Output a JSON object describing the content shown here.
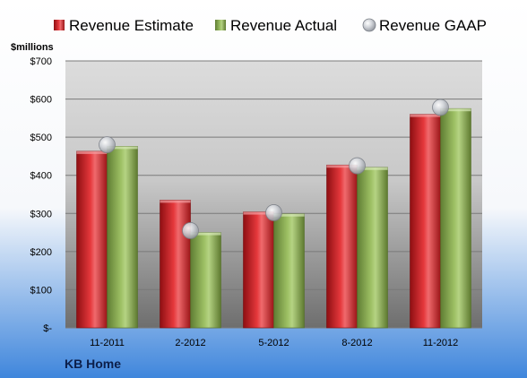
{
  "chart_data": {
    "type": "bar",
    "title": "",
    "company": "KB Home",
    "ylabel": "$millions",
    "xlabel": "",
    "ylim": [
      0,
      700
    ],
    "yticks": [
      0,
      100,
      200,
      300,
      400,
      500,
      600,
      700
    ],
    "ytick_labels": [
      "$-",
      "$100",
      "$200",
      "$300",
      "$400",
      "$500",
      "$600",
      "$700"
    ],
    "grid": true,
    "legend_position": "top",
    "categories": [
      "11-2011",
      "2-2012",
      "5-2012",
      "8-2012",
      "11-2012"
    ],
    "series": [
      {
        "name": "Revenue Estimate",
        "kind": "bar",
        "color": "#d9262b",
        "values": [
          463,
          335,
          304,
          427,
          560
        ]
      },
      {
        "name": "Revenue Actual",
        "kind": "bar",
        "color": "#8fb255",
        "values": [
          476,
          250,
          299,
          421,
          575
        ]
      },
      {
        "name": "Revenue GAAP",
        "kind": "marker",
        "color": "#b9bdc6",
        "values": [
          480,
          255,
          302,
          425,
          578
        ]
      }
    ]
  }
}
